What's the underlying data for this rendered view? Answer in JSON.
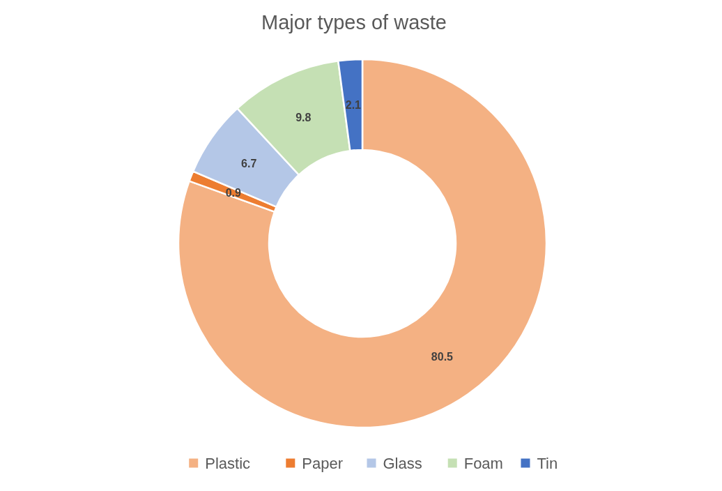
{
  "chart_data": {
    "type": "donut",
    "title": "Major types of waste",
    "categories": [
      "Plastic",
      "Paper",
      "Glass",
      "Foam",
      "Tin"
    ],
    "values": [
      80.5,
      0.9,
      6.7,
      9.8,
      2.1
    ],
    "colors": [
      "#f4b183",
      "#ed7d31",
      "#b4c7e7",
      "#c5e0b4",
      "#4472c4"
    ],
    "data_labels": true,
    "legend": "bottom"
  }
}
